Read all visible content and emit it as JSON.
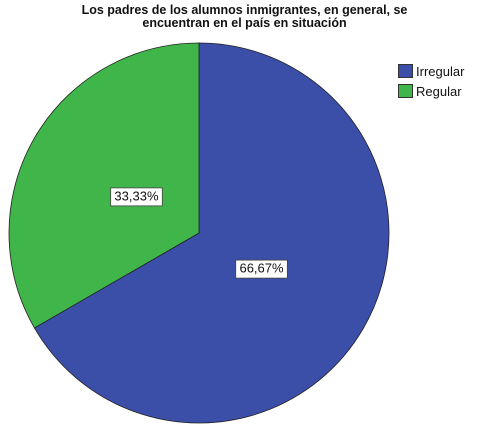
{
  "title_line1": "Los padres de los alumnos inmigrantes, en general, se",
  "title_line2": "encuentran en el país en situación",
  "chart_data": {
    "type": "pie",
    "title": "Los padres de los alumnos inmigrantes, en general, se encuentran en el país en situación",
    "categories": [
      "Irregular",
      "Regular"
    ],
    "values": [
      66.67,
      33.33
    ],
    "data_labels": [
      "66,67%",
      "33,33%"
    ],
    "colors": [
      "#3b4fa9",
      "#3fb54a"
    ],
    "legend_position": "top-right"
  },
  "legend": [
    {
      "label": "Irregular",
      "color": "#3b4fa9"
    },
    {
      "label": "Regular",
      "color": "#3fb54a"
    }
  ]
}
